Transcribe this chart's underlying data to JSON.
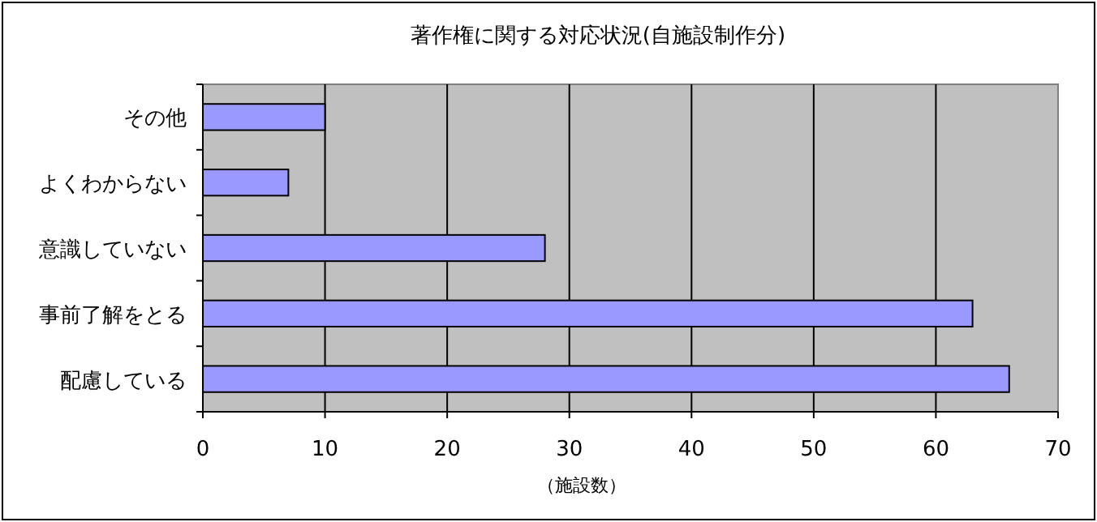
{
  "chart_data": {
    "type": "bar",
    "orientation": "horizontal",
    "title": "著作権に関する対応状況(自施設制作分)",
    "xlabel": "（施設数）",
    "categories": [
      "その他",
      "よくわからない",
      "意識していない",
      "事前了解をとる",
      "配慮している"
    ],
    "values": [
      10,
      7,
      28,
      63,
      66
    ],
    "color": "#9999ff",
    "xlim": [
      0,
      70
    ],
    "xticks": [
      0,
      10,
      20,
      30,
      40,
      50,
      60,
      70
    ],
    "grid": "x"
  }
}
